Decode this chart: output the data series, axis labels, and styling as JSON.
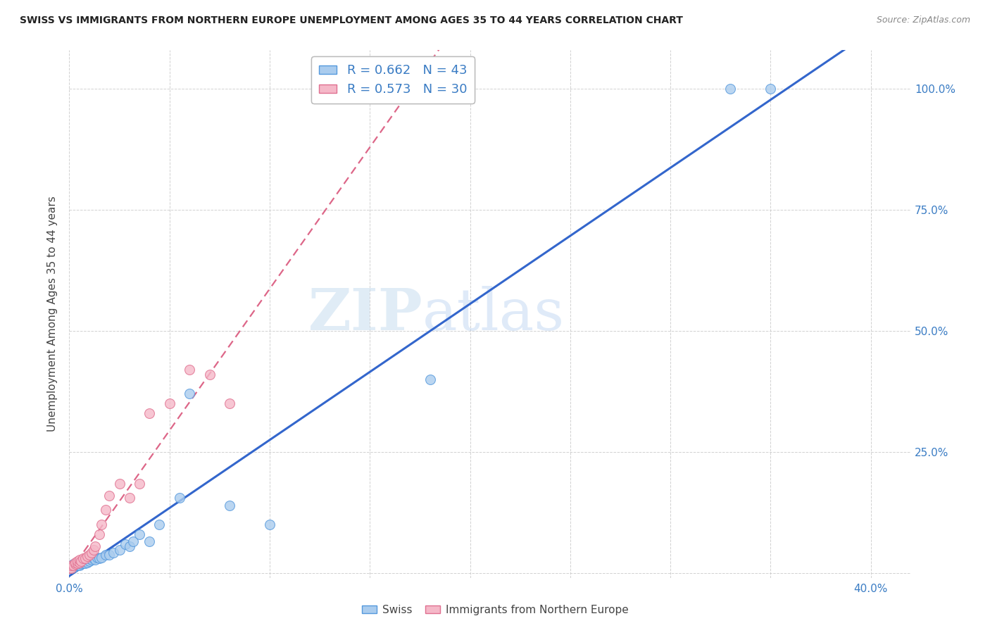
{
  "title": "SWISS VS IMMIGRANTS FROM NORTHERN EUROPE UNEMPLOYMENT AMONG AGES 35 TO 44 YEARS CORRELATION CHART",
  "source": "Source: ZipAtlas.com",
  "ylabel": "Unemployment Among Ages 35 to 44 years",
  "xlim": [
    0.0,
    0.42
  ],
  "ylim": [
    -0.01,
    1.08
  ],
  "xtick_pos": [
    0.0,
    0.05,
    0.1,
    0.15,
    0.2,
    0.25,
    0.3,
    0.35,
    0.4
  ],
  "xticklabels": [
    "0.0%",
    "",
    "",
    "",
    "",
    "",
    "",
    "",
    "40.0%"
  ],
  "ytick_pos": [
    0.0,
    0.25,
    0.5,
    0.75,
    1.0
  ],
  "ytick_labels": [
    "",
    "25.0%",
    "50.0%",
    "75.0%",
    "100.0%"
  ],
  "legend_labels": [
    "Swiss",
    "Immigrants from Northern Europe"
  ],
  "r_swiss": "0.662",
  "n_swiss": "43",
  "r_imm": "0.573",
  "n_imm": "30",
  "swiss_fill": "#aaccee",
  "swiss_edge": "#5599dd",
  "imm_fill": "#f5b8c8",
  "imm_edge": "#e07090",
  "swiss_line": "#3366cc",
  "imm_line": "#dd6688",
  "watermark_zip": "ZIP",
  "watermark_atlas": "atlas",
  "bg": "#ffffff",
  "grid_color": "#cccccc",
  "swiss_x": [
    0.0,
    0.001,
    0.001,
    0.002,
    0.002,
    0.003,
    0.003,
    0.004,
    0.004,
    0.005,
    0.005,
    0.006,
    0.006,
    0.007,
    0.007,
    0.008,
    0.008,
    0.009,
    0.01,
    0.01,
    0.011,
    0.012,
    0.013,
    0.014,
    0.015,
    0.016,
    0.018,
    0.02,
    0.022,
    0.025,
    0.028,
    0.03,
    0.032,
    0.035,
    0.04,
    0.045,
    0.055,
    0.06,
    0.08,
    0.1,
    0.18,
    0.33,
    0.35
  ],
  "swiss_y": [
    0.01,
    0.01,
    0.015,
    0.012,
    0.018,
    0.015,
    0.02,
    0.015,
    0.02,
    0.015,
    0.02,
    0.018,
    0.022,
    0.02,
    0.025,
    0.02,
    0.025,
    0.022,
    0.025,
    0.03,
    0.028,
    0.03,
    0.028,
    0.032,
    0.03,
    0.032,
    0.038,
    0.038,
    0.042,
    0.048,
    0.06,
    0.055,
    0.065,
    0.08,
    0.065,
    0.1,
    0.155,
    0.37,
    0.14,
    0.1,
    0.4,
    1.0,
    1.0
  ],
  "imm_x": [
    0.0,
    0.001,
    0.001,
    0.002,
    0.003,
    0.003,
    0.004,
    0.004,
    0.005,
    0.005,
    0.006,
    0.007,
    0.008,
    0.009,
    0.01,
    0.011,
    0.012,
    0.013,
    0.015,
    0.016,
    0.018,
    0.02,
    0.025,
    0.03,
    0.035,
    0.04,
    0.05,
    0.06,
    0.07,
    0.08
  ],
  "imm_y": [
    0.01,
    0.01,
    0.015,
    0.015,
    0.018,
    0.022,
    0.02,
    0.025,
    0.022,
    0.028,
    0.025,
    0.03,
    0.03,
    0.035,
    0.038,
    0.042,
    0.048,
    0.055,
    0.08,
    0.1,
    0.13,
    0.16,
    0.185,
    0.155,
    0.185,
    0.33,
    0.35,
    0.42,
    0.41,
    0.35
  ]
}
